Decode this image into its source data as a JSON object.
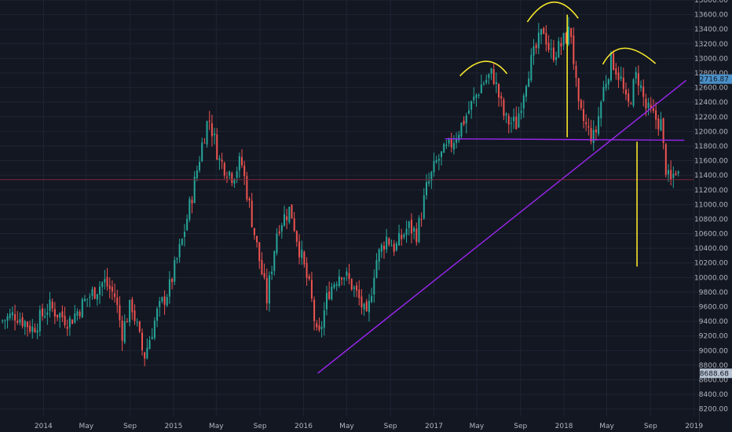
{
  "colors": {
    "background": "#131722",
    "grid": "#1f2433",
    "axis_text": "#b2b5be",
    "up_candle": "#26a69a",
    "down_candle": "#ef5350",
    "trendline": "#9c27f0",
    "annotation": "#f5e62a",
    "price_badge": "#4a90c8",
    "low_badge": "#b8c4d4",
    "crosshair_line": "#7a2a3a"
  },
  "chart_data": {
    "type": "candlestick",
    "y_axis": {
      "position": "right",
      "ylim": [
        8100,
        13800
      ],
      "ticks": [
        8200,
        8400,
        8600,
        8800,
        9000,
        9200,
        9400,
        9600,
        9800,
        10000,
        10200,
        10400,
        10600,
        10800,
        11000,
        11200,
        11400,
        11600,
        11800,
        12000,
        12200,
        12400,
        12600,
        12800,
        13000,
        13200,
        13400,
        13600,
        13800
      ],
      "tick_labels": [
        "8200.00",
        "8400.00",
        "8600.00",
        "8800.00",
        "9000.00",
        "9200.00",
        "9400.00",
        "9600.00",
        "9800.00",
        "10000.00",
        "10200.00",
        "10400.00",
        "10600.00",
        "10800.00",
        "11000.00",
        "11200.00",
        "11400.00",
        "11600.00",
        "11800.00",
        "12000.00",
        "12200.00",
        "12400.00",
        "12600.00",
        "12800.00",
        "13000.00",
        "13200.00",
        "13400.00",
        "13600.00",
        "13800.00"
      ]
    },
    "x_axis": {
      "xlim": [
        "2013-09-01",
        "2019-01-15"
      ],
      "ticks": [
        {
          "date": "2014-01-01",
          "label": "2014"
        },
        {
          "date": "2014-05-01",
          "label": "May"
        },
        {
          "date": "2014-09-01",
          "label": "Sep"
        },
        {
          "date": "2015-01-01",
          "label": "2015"
        },
        {
          "date": "2015-05-01",
          "label": "May"
        },
        {
          "date": "2015-09-01",
          "label": "Sep"
        },
        {
          "date": "2016-01-01",
          "label": "2016"
        },
        {
          "date": "2016-05-01",
          "label": "May"
        },
        {
          "date": "2016-09-01",
          "label": "Sep"
        },
        {
          "date": "2017-01-01",
          "label": "2017"
        },
        {
          "date": "2017-05-01",
          "label": "May"
        },
        {
          "date": "2017-09-01",
          "label": "Sep"
        },
        {
          "date": "2018-01-01",
          "label": "2018"
        },
        {
          "date": "2018-05-01",
          "label": "May"
        },
        {
          "date": "2018-09-01",
          "label": "Sep"
        },
        {
          "date": "2019-01-01",
          "label": "2019"
        }
      ]
    },
    "price_path": [
      [
        "2013-09-01",
        9400
      ],
      [
        "2013-10-15",
        9500
      ],
      [
        "2013-12-01",
        9300
      ],
      [
        "2014-01-15",
        9600
      ],
      [
        "2014-03-15",
        9400
      ],
      [
        "2014-05-01",
        9700
      ],
      [
        "2014-06-20",
        9950
      ],
      [
        "2014-07-20",
        9750
      ],
      [
        "2014-08-10",
        9250
      ],
      [
        "2014-09-05",
        9650
      ],
      [
        "2014-10-10",
        8900
      ],
      [
        "2014-11-15",
        9500
      ],
      [
        "2014-12-20",
        9850
      ],
      [
        "2015-01-25",
        10500
      ],
      [
        "2015-02-25",
        11200
      ],
      [
        "2015-03-25",
        11900
      ],
      [
        "2015-04-10",
        12200
      ],
      [
        "2015-05-10",
        11600
      ],
      [
        "2015-06-15",
        11400
      ],
      [
        "2015-07-10",
        11600
      ],
      [
        "2015-08-20",
        10500
      ],
      [
        "2015-09-20",
        9700
      ],
      [
        "2015-10-20",
        10700
      ],
      [
        "2015-11-25",
        10950
      ],
      [
        "2015-12-20",
        10400
      ],
      [
        "2016-01-20",
        9800
      ],
      [
        "2016-02-10",
        9100
      ],
      [
        "2016-03-10",
        9800
      ],
      [
        "2016-04-15",
        10100
      ],
      [
        "2016-05-15",
        9900
      ],
      [
        "2016-06-10",
        9650
      ],
      [
        "2016-06-27",
        9400
      ],
      [
        "2016-07-20",
        10200
      ],
      [
        "2016-08-20",
        10550
      ],
      [
        "2016-09-15",
        10400
      ],
      [
        "2016-10-20",
        10700
      ],
      [
        "2016-11-15",
        10600
      ],
      [
        "2016-12-10",
        11200
      ],
      [
        "2017-01-10",
        11600
      ],
      [
        "2017-02-15",
        11800
      ],
      [
        "2017-03-15",
        12050
      ],
      [
        "2017-04-20",
        12400
      ],
      [
        "2017-05-15",
        12650
      ],
      [
        "2017-06-15",
        12800
      ],
      [
        "2017-07-20",
        12150
      ],
      [
        "2017-08-20",
        12100
      ],
      [
        "2017-09-20",
        12800
      ],
      [
        "2017-10-20",
        13200
      ],
      [
        "2017-11-05",
        13400
      ],
      [
        "2017-11-25",
        13050
      ],
      [
        "2017-12-20",
        13150
      ],
      [
        "2018-01-20",
        13400
      ],
      [
        "2018-02-10",
        12300
      ],
      [
        "2018-03-10",
        12000
      ],
      [
        "2018-03-28",
        11900
      ],
      [
        "2018-04-20",
        12550
      ],
      [
        "2018-05-15",
        13000
      ],
      [
        "2018-06-10",
        12700
      ],
      [
        "2018-06-28",
        12300
      ],
      [
        "2018-07-25",
        12800
      ],
      [
        "2018-08-20",
        12300
      ],
      [
        "2018-09-10",
        12200
      ],
      [
        "2018-10-01",
        12100
      ],
      [
        "2018-10-10",
        11600
      ],
      [
        "2018-10-25",
        11250
      ],
      [
        "2018-11-10",
        11500
      ],
      [
        "2018-11-22",
        11350
      ]
    ],
    "lines": [
      {
        "kind": "trendline",
        "from": [
          "2016-02-10",
          8690
        ],
        "to": [
          "2018-12-10",
          12700
        ]
      },
      {
        "kind": "neckline",
        "from": [
          "2017-02-01",
          11900
        ],
        "to": [
          "2018-12-05",
          11880
        ]
      },
      {
        "kind": "horizontal-marker",
        "from": [
          "2013-09-01",
          11340
        ],
        "to": [
          "2018-12-31",
          11340
        ]
      },
      {
        "kind": "target-vertical",
        "from": [
          "2018-01-10",
          13600
        ],
        "to": [
          "2018-01-10",
          11920
        ]
      },
      {
        "kind": "target-vertical",
        "from": [
          "2018-07-25",
          11860
        ],
        "to": [
          "2018-07-25",
          10150
        ]
      }
    ],
    "arcs": [
      {
        "name": "left-shoulder",
        "from": [
          "2017-03-15",
          12760
        ],
        "peak": [
          "2017-05-25",
          12960
        ],
        "to": [
          "2017-07-25",
          12790
        ]
      },
      {
        "name": "head",
        "from": [
          "2017-09-20",
          13500
        ],
        "peak": [
          "2017-12-01",
          13770
        ],
        "to": [
          "2018-02-10",
          13550
        ]
      },
      {
        "name": "right-shoulder",
        "from": [
          "2018-04-20",
          12920
        ],
        "peak": [
          "2018-06-20",
          13140
        ],
        "to": [
          "2018-09-15",
          12930
        ]
      }
    ],
    "price_labels": {
      "current": "12716.87",
      "current_value": 12716.87,
      "low": "8688.68",
      "low_value": 8688.68
    }
  }
}
